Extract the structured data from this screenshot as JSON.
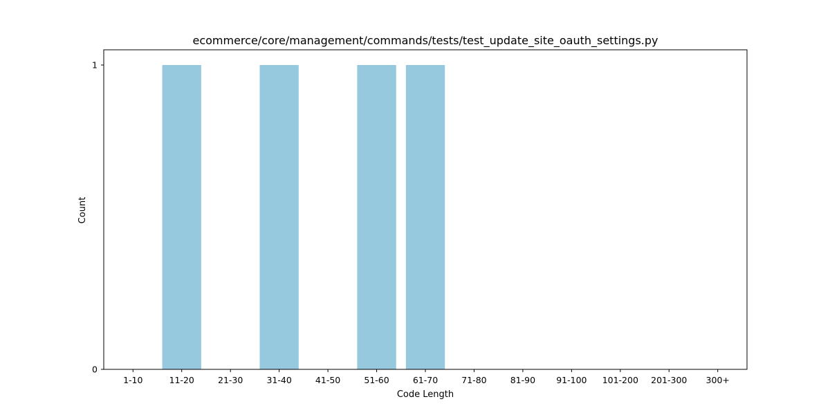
{
  "chart_data": {
    "type": "bar",
    "title": "ecommerce/core/management/commands/tests/test_update_site_oauth_settings.py",
    "xlabel": "Code Length",
    "ylabel": "Count",
    "categories": [
      "1-10",
      "11-20",
      "21-30",
      "31-40",
      "41-50",
      "51-60",
      "61-70",
      "71-80",
      "81-90",
      "91-100",
      "101-200",
      "201-300",
      "300+"
    ],
    "values": [
      0,
      1,
      0,
      1,
      0,
      1,
      1,
      0,
      0,
      0,
      0,
      0,
      0
    ],
    "ylim": [
      0,
      1.05
    ],
    "yticks": [
      0,
      1
    ],
    "grid": false,
    "bar_color": "#96c9de"
  }
}
